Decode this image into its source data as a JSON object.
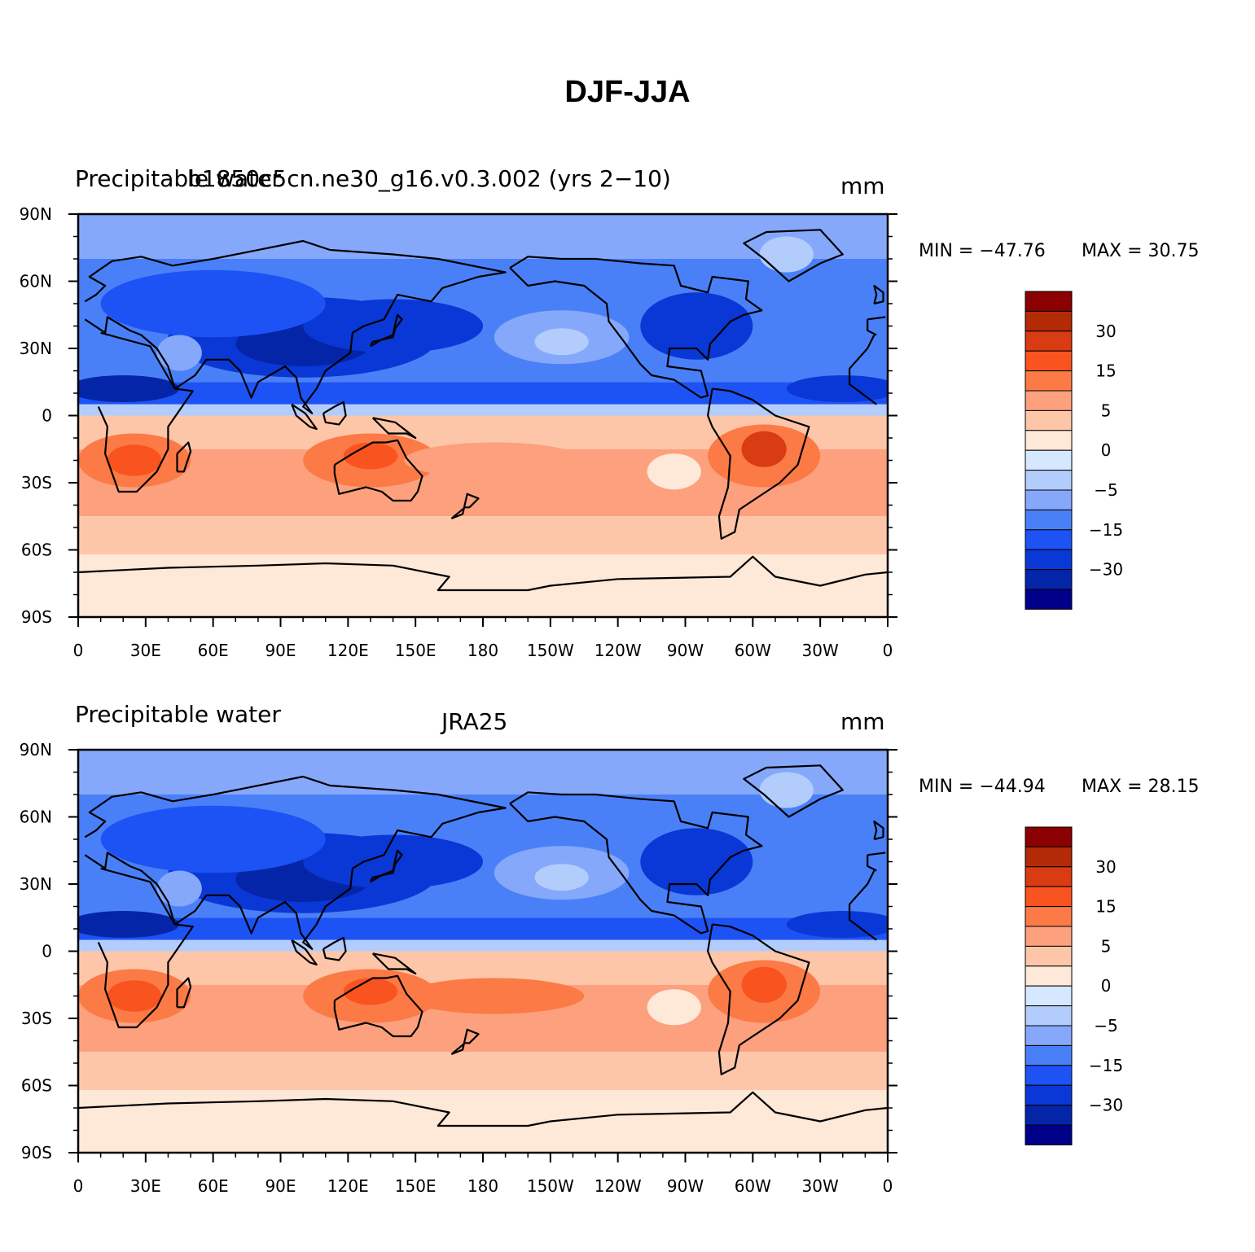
{
  "title": "DJF-JJA",
  "panels": [
    {
      "left_label": "Precipitable water",
      "center_label": "b1850c5cn.ne30_g16.v0.3.002 (yrs 2−10)",
      "right_label": "mm",
      "min_text": "MIN = −47.76",
      "max_text": "MAX =   30.75",
      "variant": "model"
    },
    {
      "left_label": "Precipitable water",
      "center_label": "JRA25",
      "right_label": "mm",
      "min_text": "MIN = −44.94",
      "max_text": "MAX =   28.15",
      "variant": "obs"
    }
  ],
  "axes": {
    "lat_labels": [
      "90N",
      "60N",
      "30N",
      "0",
      "30S",
      "60S",
      "90S"
    ],
    "lon_labels": [
      "0",
      "30E",
      "60E",
      "90E",
      "120E",
      "150E",
      "180",
      "150W",
      "120W",
      "90W",
      "60W",
      "30W",
      "0"
    ]
  },
  "colorbar": {
    "colors": [
      "#8b0000",
      "#b22a06",
      "#d93b12",
      "#f9531f",
      "#fb7a46",
      "#fca07e",
      "#fdc6a8",
      "#fee8d8",
      "#d6e8ff",
      "#b2ccfb",
      "#85a8fb",
      "#4a80f7",
      "#1d52f5",
      "#0a38d6",
      "#0525a8",
      "#00008b"
    ],
    "labels": [
      "30",
      "15",
      "5",
      "0",
      "−5",
      "−15",
      "−30"
    ]
  }
}
